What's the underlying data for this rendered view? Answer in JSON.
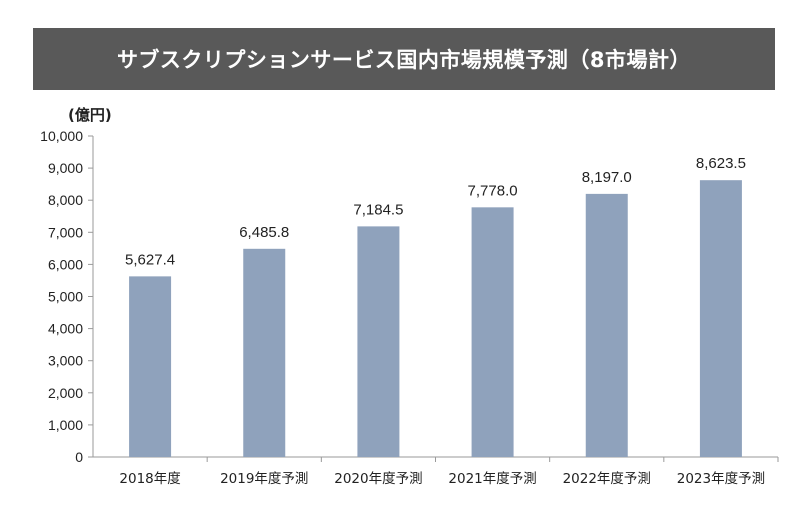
{
  "chart_data": {
    "type": "bar",
    "title": "サブスクリプションサービス国内市場規模予測（8市場計）",
    "unit_label": "(億円)",
    "categories": [
      "2018年度",
      "2019年度予測",
      "2020年度予測",
      "2021年度予測",
      "2022年度予測",
      "2023年度予測"
    ],
    "values": [
      5627.4,
      6485.8,
      7184.5,
      7778.0,
      8197.0,
      8623.5
    ],
    "data_labels": [
      "5,627.4",
      "6,485.8",
      "7,184.5",
      "7,778.0",
      "8,197.0",
      "8,623.5"
    ],
    "ylim": [
      0,
      10000
    ],
    "yticks": [
      "0",
      "1,000",
      "2,000",
      "3,000",
      "4,000",
      "5,000",
      "6,000",
      "7,000",
      "8,000",
      "9,000",
      "10,000"
    ],
    "ytick_values": [
      0,
      1000,
      2000,
      3000,
      4000,
      5000,
      6000,
      7000,
      8000,
      9000,
      10000
    ],
    "bar_color": "#8FA2BC",
    "title_bg": "#595959",
    "grid": false,
    "legend": "none"
  }
}
